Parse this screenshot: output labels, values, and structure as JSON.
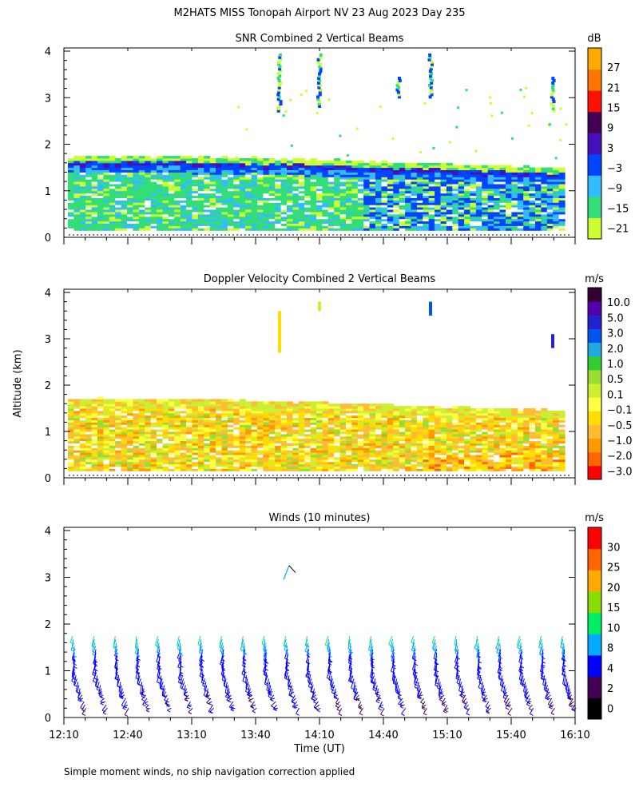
{
  "figure": {
    "title": "M2HATS MISS Tonopah Airport NV  23 Aug 2023 Day 235",
    "y_axis_label": "Altitude (km)",
    "x_axis_label": "Time (UT)",
    "footnote": "Simple moment winds, no ship navigation correction applied"
  },
  "colors": {
    "snr_scale": [
      "#ccff33",
      "#33dd77",
      "#33bbff",
      "#0044ff",
      "#4411bb",
      "#440055",
      "#ff1100",
      "#ff7700",
      "#ffaa00"
    ],
    "velocity_scale": [
      "#ff0000",
      "#ff6600",
      "#ff9900",
      "#ffbb33",
      "#ffdd00",
      "#ffff44",
      "#ccee33",
      "#99dd33",
      "#33cc33",
      "#22aadd",
      "#0055ee",
      "#2222cc",
      "#5500aa",
      "#330033"
    ],
    "wind_scale": [
      "#000000",
      "#440055",
      "#0000ff",
      "#00aaff",
      "#00ee66",
      "#88dd00",
      "#ffaa00",
      "#ff6600",
      "#ff0000"
    ]
  },
  "chart_data": [
    {
      "type": "heatmap",
      "title": "SNR Combined 2 Vertical Beams",
      "x_ticks": [
        "12:10",
        "12:40",
        "13:10",
        "13:40",
        "14:10",
        "14:40",
        "15:10",
        "15:40",
        "16:10"
      ],
      "ylim": [
        0,
        4
      ],
      "y_ticks": [
        "0",
        "1",
        "2",
        "3",
        "4"
      ],
      "colorbar_unit": "dB",
      "colorbar_labels": [
        "27",
        "21",
        "15",
        "9",
        "3",
        "−3",
        "−9",
        "−15",
        "−21"
      ],
      "boundary_layer_top_km": [
        1.6,
        1.6,
        1.58,
        1.55,
        1.5,
        1.45,
        1.4,
        1.35
      ],
      "scattered_echoes_km": [
        2.7,
        3.9
      ]
    },
    {
      "type": "heatmap",
      "title": "Doppler Velocity Combined 2 Vertical Beams",
      "x_ticks": [
        "12:10",
        "12:40",
        "13:10",
        "13:40",
        "14:10",
        "14:40",
        "15:10",
        "15:40",
        "16:10"
      ],
      "ylim": [
        0,
        4
      ],
      "y_ticks": [
        "0",
        "1",
        "2",
        "3",
        "4"
      ],
      "colorbar_unit": "m/s",
      "colorbar_labels": [
        "10.0",
        "5.0",
        "3.0",
        "2.0",
        "1.0",
        "0.5",
        "0.1",
        "−0.1",
        "−0.5",
        "−1.0",
        "−2.0",
        "−3.0"
      ]
    },
    {
      "type": "scatter",
      "title": "Winds (10 minutes)",
      "x_ticks": [
        "12:10",
        "12:40",
        "13:10",
        "13:40",
        "14:10",
        "14:40",
        "15:10",
        "15:40",
        "16:10"
      ],
      "ylim": [
        0,
        4
      ],
      "y_ticks": [
        "0",
        "1",
        "2",
        "3",
        "4"
      ],
      "colorbar_unit": "m/s",
      "colorbar_labels": [
        "30",
        "25",
        "20",
        "15",
        "10",
        "8",
        "4",
        "2",
        "0"
      ],
      "profile_times": [
        "12:15",
        "12:25",
        "12:35",
        "12:45",
        "12:55",
        "13:05",
        "13:15",
        "13:25",
        "13:35",
        "13:45",
        "13:55",
        "14:05",
        "14:15",
        "14:25",
        "14:35",
        "14:45",
        "14:55",
        "15:05",
        "15:15",
        "15:25",
        "15:35",
        "15:45",
        "15:55",
        "16:05"
      ],
      "max_wind_altitude_km": 1.8
    }
  ]
}
